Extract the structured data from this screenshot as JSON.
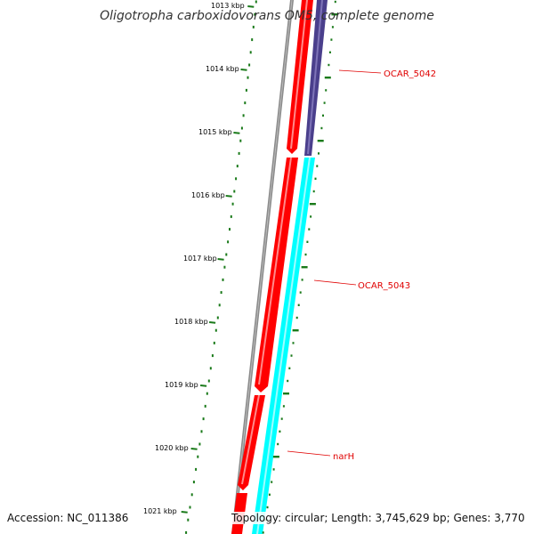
{
  "title": "Oligotropha carboxidovorans OM5, complete genome",
  "colors": {
    "backbone": "#8a8a8a",
    "forward_cds": "#ff0000",
    "reverse_cds_1": "#4a3f8c",
    "reverse_cds_2": "#00ffff",
    "ticks": "#1a7a1a",
    "gene_label": "#e00000"
  },
  "scale": {
    "unit": "kbp",
    "labels": [
      "1013 kbp",
      "1014 kbp",
      "1015 kbp",
      "1016 kbp",
      "1017 kbp",
      "1018 kbp",
      "1019 kbp",
      "1020 kbp",
      "1021 kbp"
    ]
  },
  "genes": [
    {
      "label": "OCAR_5042"
    },
    {
      "label": "OCAR_5043"
    },
    {
      "label": "narH"
    }
  ],
  "footer": {
    "accession": "Accession: NC_011386",
    "summary": "Topology: circular; Length: 3,745,629 bp; Genes: 3,770"
  }
}
